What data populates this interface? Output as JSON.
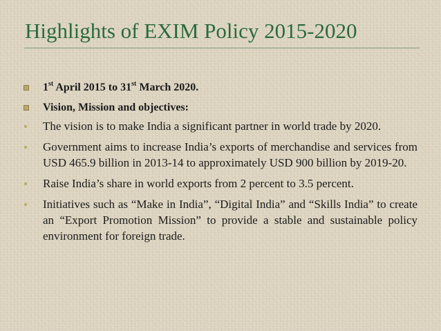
{
  "slide": {
    "title": "Highlights of EXIM Policy 2015-2020",
    "date_range": {
      "day1": "1",
      "sup1": "st",
      "mid": " April 2015 to 31",
      "sup2": "st",
      "end": " March 2020."
    },
    "heading2": "Vision, Mission and objectives:",
    "points": [
      "The vision is to make India a significant partner in world trade by 2020.",
      "Government aims to increase India’s exports of merchandise and services from USD 465.9 billion in 2013-14 to approximately USD 900 billion by 2019-20.",
      "Raise India’s share in world exports from 2 percent to 3.5 percent.",
      "Initiatives such as “Make in India”, “Digital India” and “Skills India” to create an “Export Promotion Mission” to provide a stable and sustainable policy environment for foreign trade."
    ]
  }
}
